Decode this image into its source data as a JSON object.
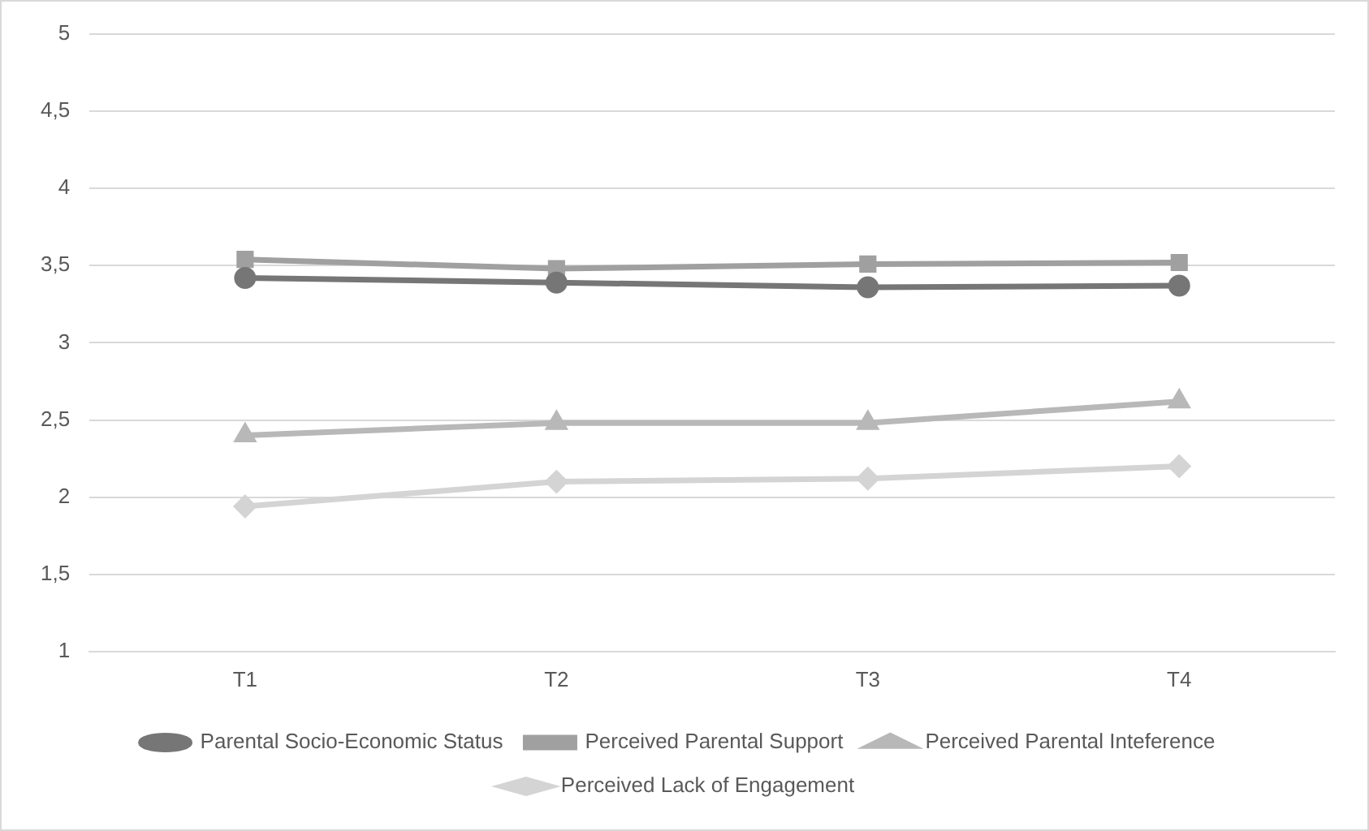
{
  "chart_data": {
    "type": "line",
    "categories": [
      "T1",
      "T2",
      "T3",
      "T4"
    ],
    "series": [
      {
        "name": "Parental Socio-Economic Status",
        "color": "#767676",
        "marker": "circle",
        "values": [
          3.42,
          3.39,
          3.36,
          3.37
        ]
      },
      {
        "name": "Perceived Parental Support",
        "color": "#a0a0a0",
        "marker": "square",
        "values": [
          3.54,
          3.48,
          3.51,
          3.52
        ]
      },
      {
        "name": "Perceived Parental Inteference",
        "color": "#b8b8b8",
        "marker": "triangle",
        "values": [
          2.4,
          2.48,
          2.48,
          2.62
        ]
      },
      {
        "name": "Perceived Lack of Engagement",
        "color": "#d4d4d4",
        "marker": "diamond",
        "values": [
          1.94,
          2.1,
          2.12,
          2.2
        ]
      }
    ],
    "ylim": [
      1,
      5
    ],
    "yticks": [
      1,
      {
        "value": 1.5,
        "label": "1,5"
      },
      2,
      {
        "value": 2.5,
        "label": "2,5"
      },
      3,
      {
        "value": 3.5,
        "label": "3,5"
      },
      4,
      {
        "value": 4.5,
        "label": "4,5"
      },
      5
    ],
    "grid": "y",
    "legend": "bottom",
    "line_style": "solid"
  }
}
